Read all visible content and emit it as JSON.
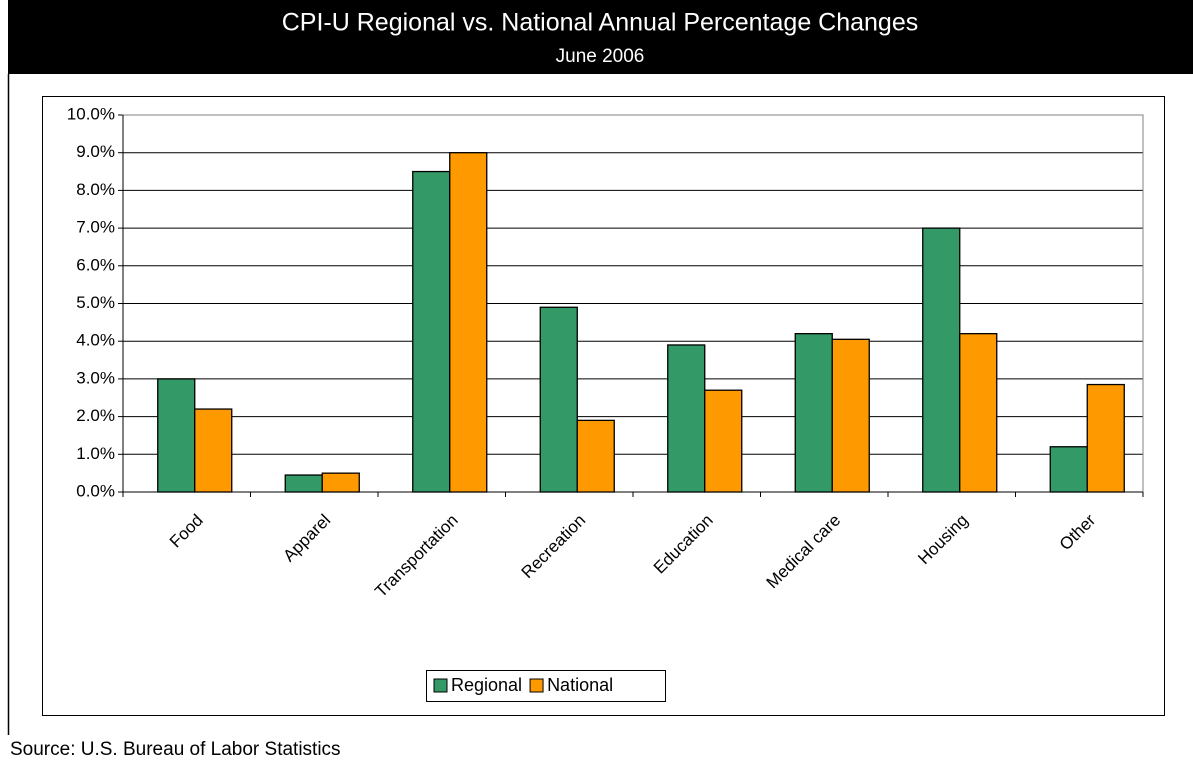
{
  "chart_data": {
    "type": "bar",
    "title": "CPI-U Regional vs. National Annual Percentage Changes",
    "subtitle": "June 2006",
    "source": "Source: U.S. Bureau of Labor Statistics",
    "categories": [
      "Food",
      "Apparel",
      "Transportation",
      "Recreation",
      "Education",
      "Medical care",
      "Housing",
      "Other"
    ],
    "series": [
      {
        "name": "Regional",
        "color": "#339966",
        "values": [
          3.0,
          0.45,
          8.5,
          4.9,
          3.9,
          4.2,
          7.0,
          1.2
        ]
      },
      {
        "name": "National",
        "color": "#ff9900",
        "values": [
          2.2,
          0.5,
          9.0,
          1.9,
          2.7,
          4.05,
          4.2,
          2.85
        ]
      }
    ],
    "ylim": [
      0,
      10
    ],
    "yticks": [
      {
        "value": 0,
        "label": "0.0%"
      },
      {
        "value": 1,
        "label": "1.0%"
      },
      {
        "value": 2,
        "label": "2.0%"
      },
      {
        "value": 3,
        "label": "3.0%"
      },
      {
        "value": 4,
        "label": "4.0%"
      },
      {
        "value": 5,
        "label": "5.0%"
      },
      {
        "value": 6,
        "label": "6.0%"
      },
      {
        "value": 7,
        "label": "7.0%"
      },
      {
        "value": 8,
        "label": "8.0%"
      },
      {
        "value": 9,
        "label": "9.0%"
      },
      {
        "value": 10,
        "label": "10.0%"
      }
    ],
    "grid": true,
    "legend": "bottom"
  }
}
